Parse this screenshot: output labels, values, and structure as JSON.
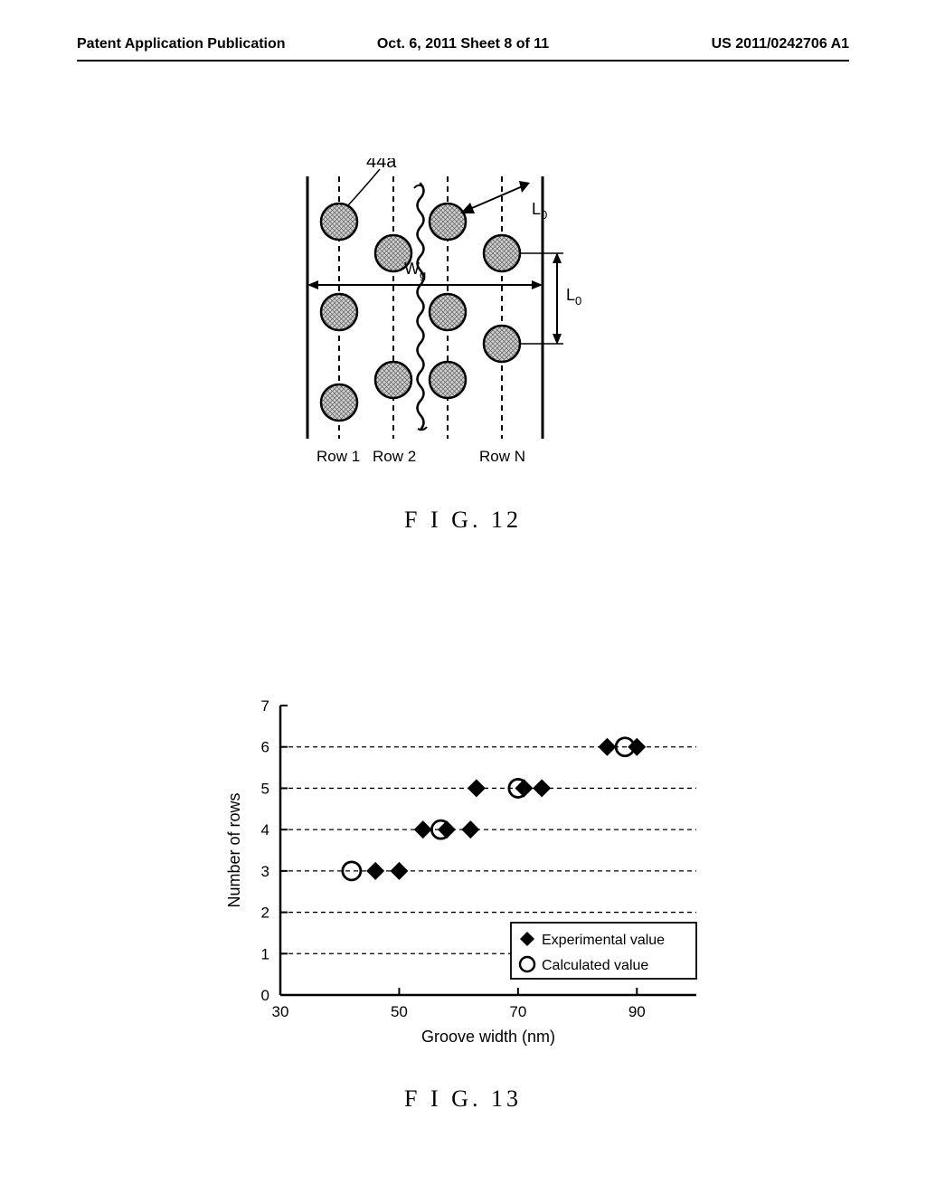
{
  "header": {
    "left": "Patent Application Publication",
    "center": "Oct. 6, 2011  Sheet 8 of 11",
    "right": "US 2011/0242706 A1"
  },
  "fig12": {
    "caption": "F I G. 12",
    "label_44a": "44a",
    "label_Wg": "Wg",
    "label_L0_top": "L₀",
    "label_L0_right": "L₀",
    "row_labels": [
      "Row 1",
      "Row 2",
      "Row N"
    ],
    "dot_fill": "#9a9a9a",
    "dot_stroke": "#000000",
    "dot_radius": 20,
    "dash_line_color": "#000000"
  },
  "fig13": {
    "caption": "F I G. 13",
    "type": "scatter",
    "xlabel": "Groove width (nm)",
    "ylabel": "Number of rows",
    "xlim": [
      30,
      100
    ],
    "ylim": [
      0,
      7
    ],
    "xtick_positions": [
      30,
      50,
      70,
      90
    ],
    "xtick_labels": [
      "30",
      "50",
      "70",
      "90"
    ],
    "ytick_positions": [
      0,
      1,
      2,
      3,
      4,
      5,
      6,
      7
    ],
    "ytick_labels": [
      "0",
      "1",
      "2",
      "3",
      "4",
      "5",
      "6",
      "7"
    ],
    "grid_color": "#000000",
    "background_color": "#ffffff",
    "axis_color": "#000000",
    "legend": {
      "items": [
        {
          "marker": "diamond_filled",
          "label": "Experimental value"
        },
        {
          "marker": "circle_open",
          "label": "Calculated value"
        }
      ],
      "position": "lower-right"
    },
    "series": [
      {
        "name": "Experimental value",
        "marker": "diamond_filled",
        "color": "#000000",
        "size": 10,
        "points": [
          [
            46,
            3
          ],
          [
            50,
            3
          ],
          [
            54,
            4
          ],
          [
            58,
            4
          ],
          [
            62,
            4
          ],
          [
            63,
            5
          ],
          [
            71,
            5
          ],
          [
            74,
            5
          ],
          [
            85,
            6
          ],
          [
            90,
            6
          ]
        ]
      },
      {
        "name": "Calculated value",
        "marker": "circle_open",
        "color": "#000000",
        "size": 10,
        "points": [
          [
            42,
            3
          ],
          [
            57,
            4
          ],
          [
            70,
            5
          ],
          [
            88,
            6
          ]
        ]
      }
    ],
    "label_fontsize": 18,
    "tick_fontsize": 17
  }
}
